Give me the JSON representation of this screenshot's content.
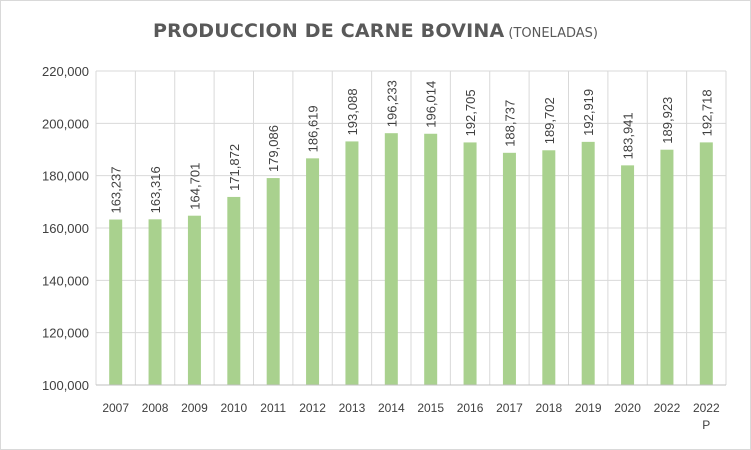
{
  "chart_data": {
    "type": "bar",
    "title": "PRODUCCION DE CARNE BOVINA",
    "subtitle": "(TONELADAS)",
    "xlabel": "",
    "ylabel": "",
    "categories": [
      "2007",
      "2008",
      "2009",
      "2010",
      "2011",
      "2012",
      "2013",
      "2014",
      "2015",
      "2016",
      "2017",
      "2018",
      "2019",
      "2020",
      "2022",
      "2022 P"
    ],
    "values": [
      163237,
      163316,
      164701,
      171872,
      179086,
      186619,
      193088,
      196233,
      196014,
      192705,
      188737,
      189702,
      192919,
      183941,
      189923,
      192718
    ],
    "data_labels": [
      "163,237",
      "163,316",
      "164,701",
      "171,872",
      "179,086",
      "186,619",
      "193,088",
      "196,233",
      "196,014",
      "192,705",
      "188,737",
      "189,702",
      "192,919",
      "183,941",
      "189,923",
      "192,718"
    ],
    "ylim": [
      100000,
      220000
    ],
    "yticks": [
      100000,
      120000,
      140000,
      160000,
      180000,
      200000,
      220000
    ],
    "ytick_labels": [
      "100,000",
      "120,000",
      "140,000",
      "160,000",
      "180,000",
      "200,000",
      "220,000"
    ],
    "grid": true,
    "legend": "none",
    "colors": {
      "bar": "#a9d18e",
      "grid": "#d9d9d9",
      "text": "#404040",
      "title": "#595959"
    }
  }
}
